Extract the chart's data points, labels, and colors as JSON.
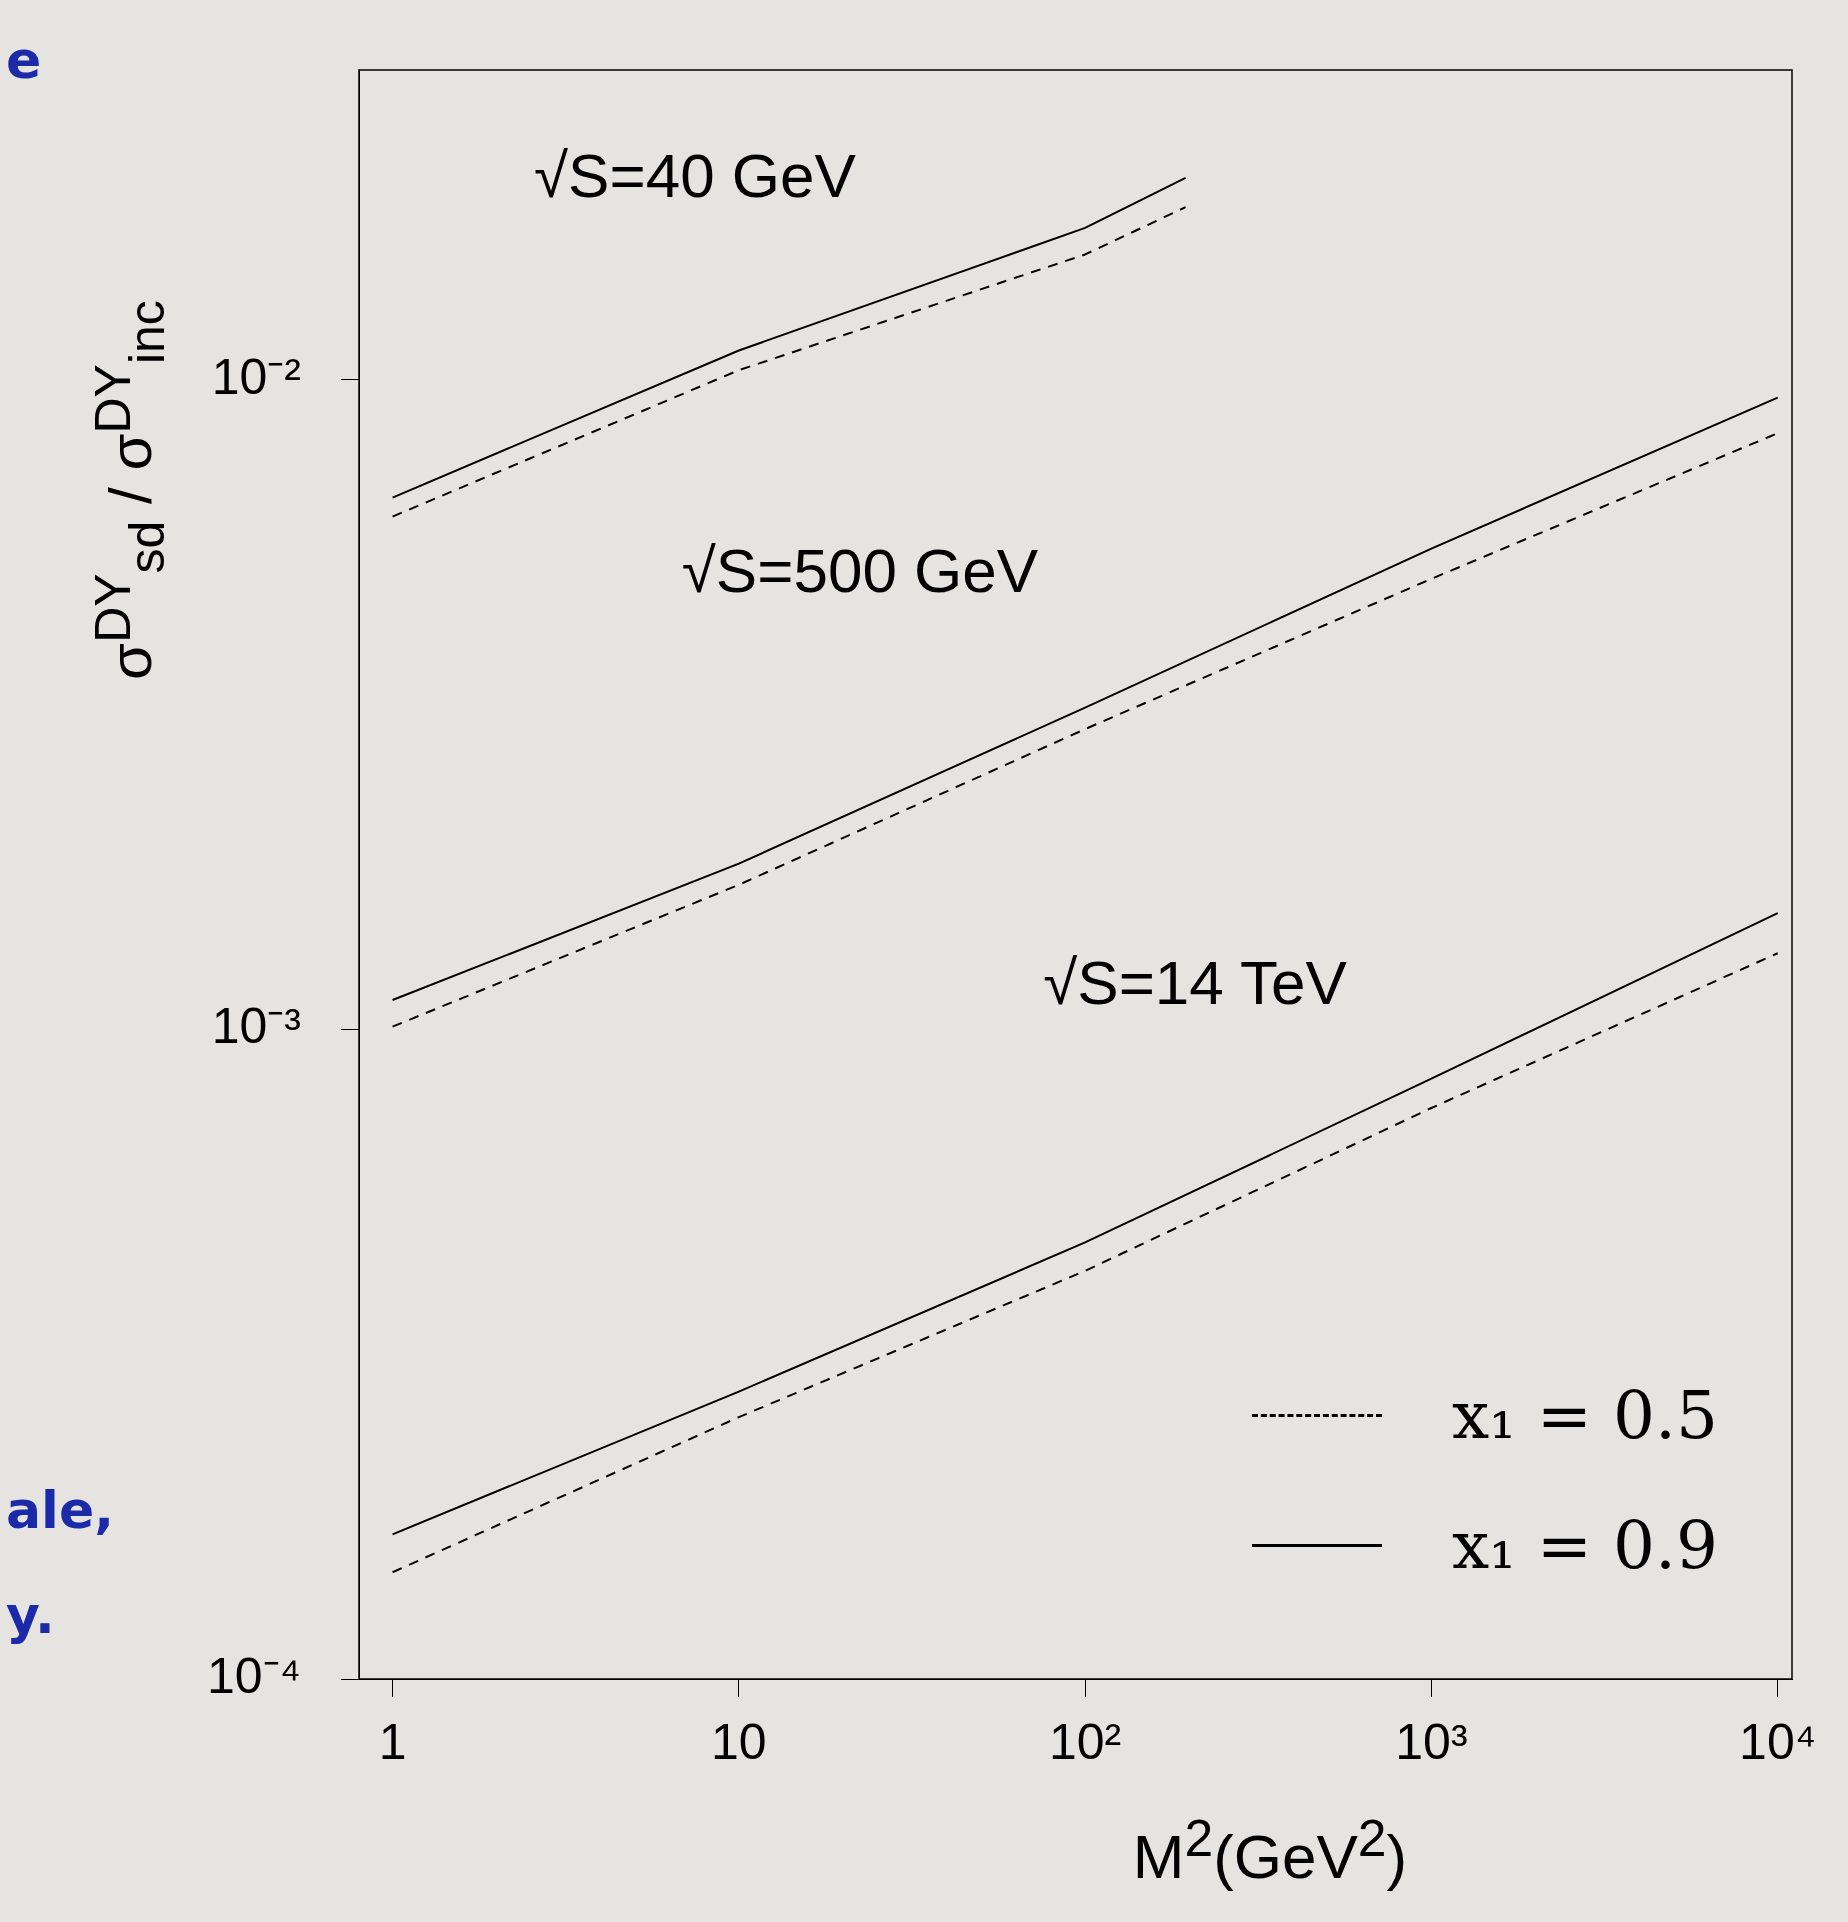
{
  "chart_data": {
    "type": "line",
    "log": "xy",
    "xlabel": "M$^{2}$(GeV$^{2}$)",
    "ylabel": "σ$^{DY}$$_{sd}$ / σ$^{DY}$$_{inc}$",
    "xlim": [
      0.8,
      11000
    ],
    "ylim": [
      0.0001,
      0.03
    ],
    "xticks": [
      1,
      10,
      {
        "value": 100,
        "label": "10²"
      },
      {
        "value": 1000,
        "label": "10³"
      },
      {
        "value": 10000,
        "label": "10⁴"
      }
    ],
    "yticks": [
      {
        "value": 0.0001,
        "label": "10⁻⁴"
      },
      {
        "value": 0.001,
        "label": "10⁻³"
      },
      {
        "value": 0.01,
        "label": "10⁻²"
      }
    ],
    "series": [
      {
        "name": "x₁ = 0.5",
        "color": "#000000",
        "line_style": "dashed",
        "x": [
          1,
          10,
          100,
          195
        ],
        "values": [
          0.00616,
          0.01035,
          0.0156,
          0.01845
        ]
      },
      {
        "name": "x₁ = 0.9",
        "color": "#000000",
        "line_style": "solid",
        "x": [
          1,
          10,
          100,
          195
        ],
        "values": [
          0.00659,
          0.0111,
          0.01714,
          0.02047
        ]
      },
      {
        "color": "#000000",
        "line_style": "solid",
        "x": [
          1,
          10,
          100,
          1000,
          10000
        ],
        "values": [
          0.00111,
          0.0018,
          0.00313,
          0.0055,
          0.00939
        ]
      },
      {
        "color": "#000000",
        "line_style": "dashed",
        "x": [
          1,
          10,
          100,
          1000,
          10000
        ],
        "values": [
          0.00101,
          0.00167,
          0.0029,
          0.00494,
          0.00828
        ]
      },
      {
        "color": "#000000",
        "line_style": "solid",
        "x": [
          1,
          10,
          100,
          1000,
          10000
        ],
        "values": [
          0.000167,
          0.000277,
          0.00047,
          0.00084,
          0.00151
        ]
      },
      {
        "color": "#000000",
        "line_style": "dashed",
        "x": [
          1,
          10,
          100,
          1000,
          10000
        ],
        "values": [
          0.000146,
          0.000253,
          0.000425,
          0.000757,
          0.00131
        ]
      }
    ],
    "marker": "none",
    "grid": false,
    "legend": "bottom right",
    "annotations": [
      "√S=40 GeV",
      "√S=500 GeV",
      "√S=14 TeV",
      "e",
      "ale,",
      "y."
    ]
  }
}
